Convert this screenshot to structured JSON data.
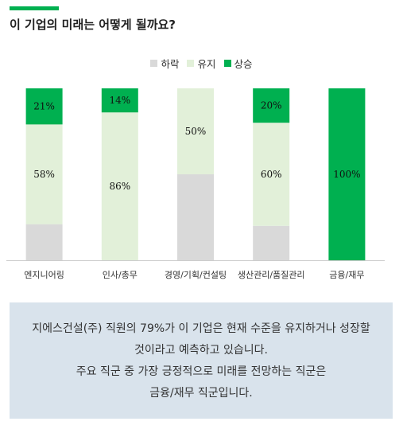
{
  "header": {
    "title": "이 기업의 미래는 어떻게 될까요?"
  },
  "colors": {
    "accent": "#00b050",
    "decline": "#d9d9d9",
    "maintain": "#e2f0d9",
    "rise": "#00b050",
    "axis": "#cccccc",
    "summary_bg": "#d9e3ec"
  },
  "legend": [
    {
      "label": "하락",
      "color": "#d9d9d9"
    },
    {
      "label": "유지",
      "color": "#e2f0d9"
    },
    {
      "label": "상승",
      "color": "#00b050"
    }
  ],
  "chart_data": {
    "type": "bar",
    "stacked": true,
    "normalized": "percent",
    "categories": [
      "엔지니어링",
      "인사/총무",
      "경영/기획/컨설팅",
      "생산관리/품질관리",
      "금융/재무"
    ],
    "series": [
      {
        "name": "하락",
        "values": [
          21,
          0,
          50,
          20,
          0
        ]
      },
      {
        "name": "유지",
        "values": [
          58,
          86,
          50,
          60,
          0
        ]
      },
      {
        "name": "상승",
        "values": [
          21,
          14,
          0,
          20,
          100
        ]
      }
    ],
    "data_labels": [
      {
        "category": "엔지니어링",
        "labels": {
          "유지": "58%",
          "상승": "21%"
        }
      },
      {
        "category": "인사/총무",
        "labels": {
          "유지": "86%",
          "상승": "14%"
        }
      },
      {
        "category": "경영/기획/컨설팅",
        "labels": {
          "유지": "50%"
        }
      },
      {
        "category": "생산관리/품질관리",
        "labels": {
          "유지": "60%",
          "상승": "20%"
        }
      },
      {
        "category": "금융/재무",
        "labels": {
          "상승": "100%"
        }
      }
    ],
    "ylim": [
      0,
      100
    ],
    "grid": false,
    "legend_position": "top-center"
  },
  "summary": {
    "line1": "지에스건설(주) 직원의 79%가 이 기업은 현재 수준을 유지하거나 성장할",
    "line2": "것이라고 예측하고 있습니다.",
    "line3": "주요 직군 중 가장 긍정적으로 미래를 전망하는 직군은",
    "line4": "금융/재무 직군입니다."
  }
}
